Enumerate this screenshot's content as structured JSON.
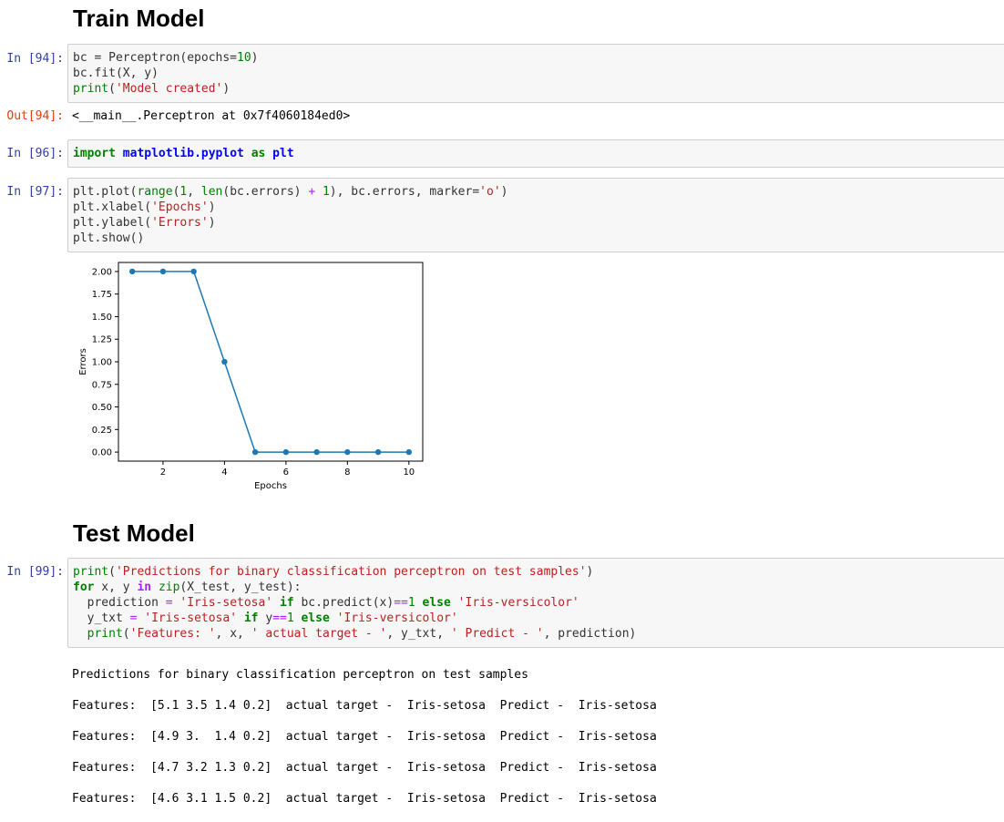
{
  "sections": {
    "train_title": "Train Model",
    "test_title": "Test Model"
  },
  "cells": {
    "c94": {
      "prompt": "In [94]:",
      "out_prompt": "Out[94]:",
      "output": "<__main__.Perceptron at 0x7f4060184ed0>"
    },
    "c96": {
      "prompt": "In [96]:"
    },
    "c97": {
      "prompt": "In [97]:"
    },
    "c99": {
      "prompt": "In [99]:",
      "output": [
        "Predictions for binary classification perceptron on test samples",
        "Features:  [5.1 3.5 1.4 0.2]  actual target -  Iris-setosa  Predict -  Iris-setosa",
        "Features:  [4.9 3.  1.4 0.2]  actual target -  Iris-setosa  Predict -  Iris-setosa",
        "Features:  [4.7 3.2 1.3 0.2]  actual target -  Iris-setosa  Predict -  Iris-setosa",
        "Features:  [4.6 3.1 1.5 0.2]  actual target -  Iris-setosa  Predict -  Iris-setosa"
      ]
    }
  },
  "chart_data": {
    "type": "line",
    "x": [
      1,
      2,
      3,
      4,
      5,
      6,
      7,
      8,
      9,
      10
    ],
    "y": [
      2,
      2,
      2,
      1,
      0,
      0,
      0,
      0,
      0,
      0
    ],
    "marker": "o",
    "color": "#1f77b4",
    "xlabel": "Epochs",
    "ylabel": "Errors",
    "xticks": [
      "2",
      "4",
      "6",
      "8",
      "10"
    ],
    "xtick_values": [
      2,
      4,
      6,
      8,
      10
    ],
    "yticks": [
      "0.00",
      "0.25",
      "0.50",
      "0.75",
      "1.00",
      "1.25",
      "1.50",
      "1.75",
      "2.00"
    ],
    "ytick_values": [
      0,
      0.25,
      0.5,
      0.75,
      1,
      1.25,
      1.5,
      1.75,
      2
    ],
    "xlim": [
      0.55,
      10.45
    ],
    "ylim": [
      -0.1,
      2.1
    ],
    "grid": false
  }
}
